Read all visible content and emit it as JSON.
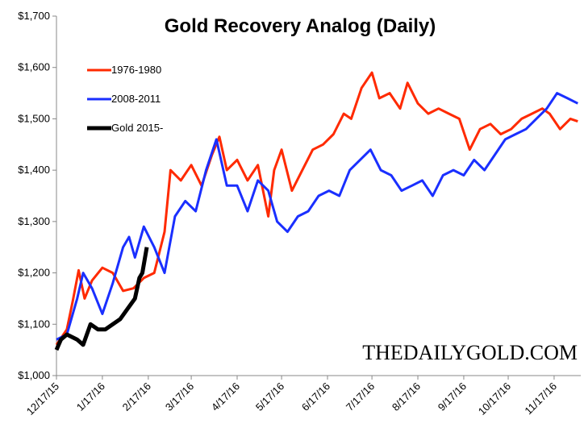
{
  "chart_data": {
    "type": "line",
    "title": "Gold Recovery Analog (Daily)",
    "watermark": "THEDAILYGOLD.COM",
    "xlim": [
      "12/17/15",
      "12/5/16"
    ],
    "xticks": [
      "12/17/15",
      "1/17/16",
      "2/17/16",
      "3/17/16",
      "4/17/16",
      "5/17/16",
      "6/17/16",
      "7/17/16",
      "8/17/16",
      "9/17/16",
      "10/17/16",
      "11/17/16"
    ],
    "ylim": [
      1000,
      1700
    ],
    "yticks": [
      {
        "value": 1000,
        "label": "$1,000"
      },
      {
        "value": 1100,
        "label": "$1,100"
      },
      {
        "value": 1200,
        "label": "$1,200"
      },
      {
        "value": 1300,
        "label": "$1,300"
      },
      {
        "value": 1400,
        "label": "$1,400"
      },
      {
        "value": 1500,
        "label": "$1,500"
      },
      {
        "value": 1600,
        "label": "$1,600"
      },
      {
        "value": 1700,
        "label": "$1,700"
      }
    ],
    "legend": "upper left",
    "series": [
      {
        "name": "1976-1980",
        "color": "#ff2a00",
        "width": 3,
        "x": [
          "12/17/15",
          "12/24/15",
          "12/28/15",
          "1/1/16",
          "1/5/16",
          "1/10/16",
          "1/17/16",
          "1/24/16",
          "1/31/16",
          "2/7/16",
          "2/14/16",
          "2/21/16",
          "2/28/16",
          "3/3/16",
          "3/10/16",
          "3/17/16",
          "3/24/16",
          "3/31/16",
          "4/5/16",
          "4/10/16",
          "4/17/16",
          "4/24/16",
          "5/1/16",
          "5/8/16",
          "5/12/16",
          "5/17/16",
          "5/24/16",
          "5/31/16",
          "6/7/16",
          "6/14/16",
          "6/21/16",
          "6/28/16",
          "7/3/16",
          "7/10/16",
          "7/17/16",
          "7/22/16",
          "7/29/16",
          "8/5/16",
          "8/10/16",
          "8/17/16",
          "8/24/16",
          "8/31/16",
          "9/7/16",
          "9/14/16",
          "9/21/16",
          "9/28/16",
          "10/5/16",
          "10/12/16",
          "10/19/16",
          "10/26/16",
          "11/2/16",
          "11/9/16",
          "11/14/16",
          "11/21/16",
          "11/28/16",
          "12/3/16"
        ],
        "values": [
          1060,
          1090,
          1145,
          1205,
          1150,
          1185,
          1210,
          1200,
          1165,
          1170,
          1190,
          1200,
          1280,
          1400,
          1380,
          1410,
          1370,
          1430,
          1465,
          1400,
          1420,
          1380,
          1410,
          1310,
          1400,
          1440,
          1360,
          1400,
          1440,
          1450,
          1470,
          1510,
          1500,
          1560,
          1590,
          1540,
          1550,
          1520,
          1570,
          1530,
          1510,
          1520,
          1510,
          1500,
          1440,
          1480,
          1490,
          1470,
          1480,
          1500,
          1510,
          1520,
          1510,
          1480,
          1500,
          1495
        ]
      },
      {
        "name": "2008-2011",
        "color": "#1a2fff",
        "width": 3,
        "x": [
          "12/17/15",
          "12/24/15",
          "12/31/15",
          "1/4/16",
          "1/10/16",
          "1/17/16",
          "1/24/16",
          "1/31/16",
          "2/4/16",
          "2/8/16",
          "2/14/16",
          "2/21/16",
          "2/28/16",
          "3/6/16",
          "3/13/16",
          "3/20/16",
          "3/27/16",
          "4/3/16",
          "4/10/16",
          "4/17/16",
          "4/24/16",
          "5/1/16",
          "5/8/16",
          "5/14/16",
          "5/21/16",
          "5/28/16",
          "6/4/16",
          "6/11/16",
          "6/18/16",
          "6/25/16",
          "7/2/16",
          "7/9/16",
          "7/16/16",
          "7/23/16",
          "7/30/16",
          "8/6/16",
          "8/13/16",
          "8/20/16",
          "8/27/16",
          "9/3/16",
          "9/10/16",
          "9/17/16",
          "9/24/16",
          "10/1/16",
          "10/8/16",
          "10/15/16",
          "10/22/16",
          "10/29/16",
          "11/5/16",
          "11/12/16",
          "11/19/16",
          "11/26/16",
          "12/3/16"
        ],
        "values": [
          1070,
          1080,
          1150,
          1200,
          1170,
          1120,
          1180,
          1250,
          1270,
          1230,
          1290,
          1250,
          1200,
          1310,
          1340,
          1320,
          1400,
          1460,
          1370,
          1370,
          1320,
          1380,
          1360,
          1300,
          1280,
          1310,
          1320,
          1350,
          1360,
          1350,
          1400,
          1420,
          1440,
          1400,
          1390,
          1360,
          1370,
          1380,
          1350,
          1390,
          1400,
          1390,
          1420,
          1400,
          1430,
          1460,
          1470,
          1480,
          1500,
          1520,
          1550,
          1540,
          1530
        ]
      },
      {
        "name": "Gold 2015-",
        "color": "#000000",
        "width": 5,
        "x": [
          "12/17/15",
          "12/20/15",
          "12/24/15",
          "12/31/15",
          "1/4/16",
          "1/9/16",
          "1/14/16",
          "1/19/16",
          "1/24/16",
          "1/29/16",
          "2/3/16",
          "2/8/16",
          "2/11/16",
          "2/13/16",
          "2/16/16"
        ],
        "values": [
          1050,
          1070,
          1080,
          1070,
          1060,
          1100,
          1090,
          1090,
          1100,
          1110,
          1130,
          1150,
          1190,
          1200,
          1250
        ]
      }
    ]
  }
}
